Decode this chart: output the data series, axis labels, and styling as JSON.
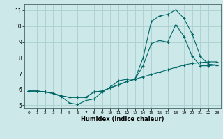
{
  "xlabel": "Humidex (Indice chaleur)",
  "background_color": "#cce8e8",
  "grid_color": "#aad0d0",
  "line_color": "#006666",
  "xlim": [
    -0.5,
    23.5
  ],
  "ylim": [
    4.8,
    11.4
  ],
  "xticks": [
    0,
    1,
    2,
    3,
    4,
    5,
    6,
    7,
    8,
    9,
    10,
    11,
    12,
    13,
    14,
    15,
    16,
    17,
    18,
    19,
    20,
    21,
    22,
    23
  ],
  "yticks": [
    5,
    6,
    7,
    8,
    9,
    10,
    11
  ],
  "line1_x": [
    0,
    1,
    2,
    3,
    4,
    5,
    6,
    7,
    8,
    9,
    10,
    11,
    12,
    13,
    14,
    15,
    16,
    17,
    18,
    19,
    20,
    21,
    22,
    23
  ],
  "line1_y": [
    5.9,
    5.9,
    5.85,
    5.75,
    5.55,
    5.15,
    5.05,
    5.3,
    5.4,
    5.85,
    6.15,
    6.55,
    6.65,
    6.65,
    8.0,
    10.3,
    10.65,
    10.75,
    11.05,
    10.5,
    9.5,
    8.1,
    7.6,
    7.55
  ],
  "line2_x": [
    0,
    1,
    2,
    3,
    4,
    5,
    6,
    7,
    8,
    9,
    10,
    11,
    12,
    13,
    14,
    15,
    16,
    17,
    18,
    19,
    20,
    21,
    22,
    23
  ],
  "line2_y": [
    5.9,
    5.9,
    5.85,
    5.75,
    5.6,
    5.5,
    5.5,
    5.5,
    5.85,
    5.9,
    6.1,
    6.3,
    6.5,
    6.65,
    7.5,
    8.9,
    9.1,
    9.0,
    10.1,
    9.35,
    8.1,
    7.5,
    7.5,
    7.55
  ],
  "line3_x": [
    0,
    1,
    2,
    3,
    4,
    5,
    6,
    7,
    8,
    9,
    10,
    11,
    12,
    13,
    14,
    15,
    16,
    17,
    18,
    19,
    20,
    21,
    22,
    23
  ],
  "line3_y": [
    5.9,
    5.9,
    5.85,
    5.75,
    5.6,
    5.5,
    5.5,
    5.5,
    5.85,
    5.9,
    6.1,
    6.3,
    6.5,
    6.65,
    6.8,
    6.95,
    7.1,
    7.25,
    7.4,
    7.55,
    7.65,
    7.7,
    7.75,
    7.75
  ]
}
